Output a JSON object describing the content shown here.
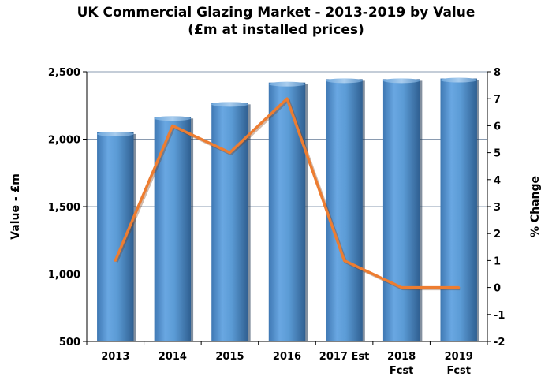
{
  "chart_data": {
    "type": "bar",
    "title": "UK Commercial Glazing Market - 2013-2019 by Value",
    "subtitle": "(£m at installed prices)",
    "categories": [
      "2013",
      "2014",
      "2015",
      "2016",
      "2017 Est",
      "2018 Fcst",
      "2019 Fcst"
    ],
    "category_lines": [
      [
        "2013"
      ],
      [
        "2014"
      ],
      [
        "2015"
      ],
      [
        "2016"
      ],
      [
        "2017 Est"
      ],
      [
        "2018",
        "Fcst"
      ],
      [
        "2019",
        "Fcst"
      ]
    ],
    "series": [
      {
        "type": "bar",
        "axis": "left",
        "values": [
          2050,
          2165,
          2270,
          2420,
          2445,
          2445,
          2450
        ],
        "color": "#5b9bd5"
      },
      {
        "type": "line",
        "axis": "right",
        "values": [
          1,
          6,
          5,
          7,
          1,
          0,
          0
        ],
        "color": "#ed7d31"
      }
    ],
    "ylabel": "Value  - £m",
    "y2label": "% Change",
    "ylim": [
      500,
      2500
    ],
    "yticks": [
      500,
      1000,
      1500,
      2000,
      2500
    ],
    "ytick_labels": [
      "500",
      "1,000",
      "1,500",
      "2,000",
      "2,500"
    ],
    "y2lim": [
      -2,
      8
    ],
    "y2ticks": [
      -2,
      -1,
      0,
      1,
      2,
      3,
      4,
      5,
      6,
      7,
      8
    ],
    "y2tick_labels": [
      "-2",
      "-1",
      "0",
      "1",
      "2",
      "3",
      "4",
      "5",
      "6",
      "7",
      "8"
    ],
    "grid": true,
    "legend": "none"
  }
}
